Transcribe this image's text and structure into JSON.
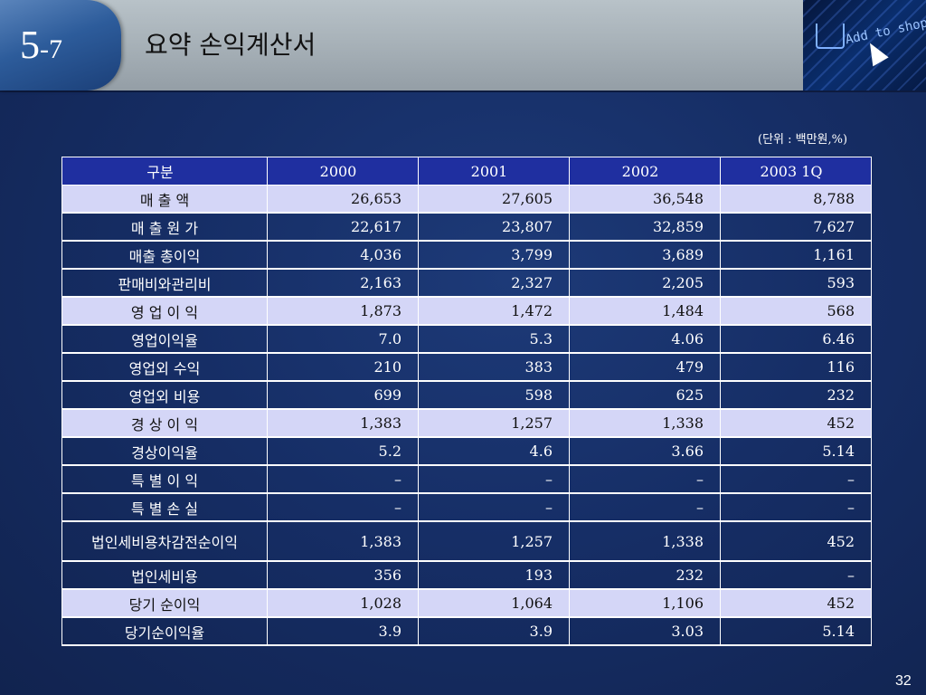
{
  "header": {
    "section_number_main": "5",
    "section_number_sub": "-7",
    "title": "요약 손익계산서"
  },
  "banner": {
    "text": "Add to shopp"
  },
  "unit_note": "(단위 : 백만원,%)",
  "table": {
    "columns": [
      "구분",
      "2000",
      "2001",
      "2002",
      "2003 1Q"
    ],
    "rows": [
      {
        "label": "매  출  액",
        "values": [
          "26,653",
          "27,605",
          "36,548",
          "8,788"
        ],
        "highlight": true
      },
      {
        "label": "매 출 원 가",
        "values": [
          "22,617",
          "23,807",
          "32,859",
          "7,627"
        ],
        "highlight": false
      },
      {
        "label": "매출 총이익",
        "values": [
          "4,036",
          "3,799",
          "3,689",
          "1,161"
        ],
        "highlight": false
      },
      {
        "label": "판매비와관리비",
        "values": [
          "2,163",
          "2,327",
          "2,205",
          "593"
        ],
        "highlight": false
      },
      {
        "label": "영 업 이 익",
        "values": [
          "1,873",
          "1,472",
          "1,484",
          "568"
        ],
        "highlight": true
      },
      {
        "label": "영업이익율",
        "values": [
          "7.0",
          "5.3",
          "4.06",
          "6.46"
        ],
        "highlight": false
      },
      {
        "label": "영업외 수익",
        "values": [
          "210",
          "383",
          "479",
          "116"
        ],
        "highlight": false
      },
      {
        "label": "영업외 비용",
        "values": [
          "699",
          "598",
          "625",
          "232"
        ],
        "highlight": false
      },
      {
        "label": "경 상 이 익",
        "values": [
          "1,383",
          "1,257",
          "1,338",
          "452"
        ],
        "highlight": true
      },
      {
        "label": "경상이익율",
        "values": [
          "5.2",
          "4.6",
          "3.66",
          "5.14"
        ],
        "highlight": false
      },
      {
        "label": "특 별 이 익",
        "values": [
          "–",
          "–",
          "–",
          "–"
        ],
        "highlight": false
      },
      {
        "label": "특 별 손 실",
        "values": [
          "–",
          "–",
          "–",
          "–"
        ],
        "highlight": false
      },
      {
        "label": "법인세비용차감전순이익",
        "values": [
          "1,383",
          "1,257",
          "1,338",
          "452"
        ],
        "highlight": false,
        "tall": true
      },
      {
        "label": "법인세비용",
        "values": [
          "356",
          "193",
          "232",
          "–"
        ],
        "highlight": false
      },
      {
        "label": "당기 순이익",
        "values": [
          "1,028",
          "1,064",
          "1,106",
          "452"
        ],
        "highlight": true
      },
      {
        "label": "당기순이익율",
        "values": [
          "3.9",
          "3.9",
          "3.03",
          "5.14"
        ],
        "highlight": false
      }
    ]
  },
  "page_number": "32",
  "colors": {
    "header_bg": "#a3adb4",
    "tab_blue": "#2d5c9b",
    "slide_bg": "#162e66",
    "table_header_bg": "#1f2fa0",
    "row_highlight": "#d4d6f7"
  }
}
